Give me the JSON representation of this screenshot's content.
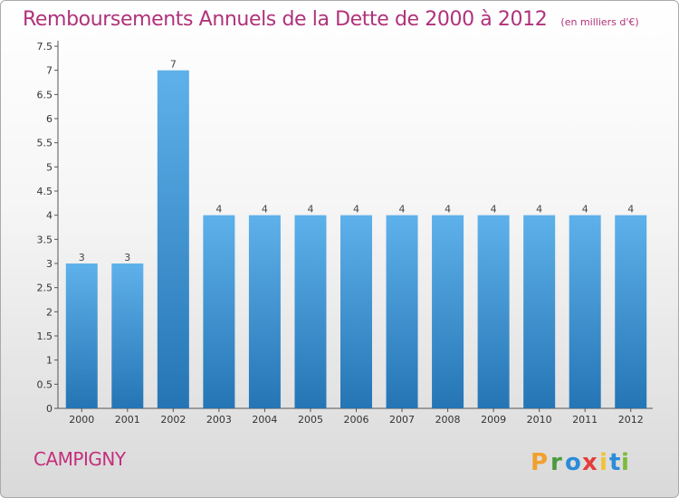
{
  "chart_data": {
    "type": "bar",
    "title": "Remboursements Annuels de la Dette de 2000 à 2012",
    "unit": "(en milliers d'€)",
    "categories": [
      "2000",
      "2001",
      "2002",
      "2003",
      "2004",
      "2005",
      "2006",
      "2007",
      "2008",
      "2009",
      "2010",
      "2011",
      "2012"
    ],
    "values": [
      3,
      3,
      7,
      4,
      4,
      4,
      4,
      4,
      4,
      4,
      4,
      4,
      4
    ],
    "data_labels": [
      "3",
      "3",
      "7",
      "4",
      "4",
      "4",
      "4",
      "4",
      "4",
      "4",
      "4",
      "4",
      "4"
    ],
    "yticks": [
      "0",
      "0.5",
      "1",
      "1.5",
      "2",
      "2.5",
      "3",
      "3.5",
      "4",
      "4.5",
      "5",
      "5.5",
      "6",
      "6.5",
      "7",
      "7.5"
    ],
    "ylim": [
      0,
      7.5
    ],
    "xlabel": "",
    "ylabel": "",
    "grid": false,
    "bar_color_top": "#5eb1ea",
    "bar_color_bottom": "#2575b5"
  },
  "footer": {
    "commune": "CAMPIGNY"
  },
  "logo": {
    "text": "Proxiti",
    "letters": [
      "P",
      "r",
      "o",
      "x",
      "i",
      "t",
      "i"
    ],
    "colors": [
      "#f2a02d",
      "#4b9b3b",
      "#2b8cd8",
      "#e33e3b",
      "#f2c233",
      "#2b8cd8",
      "#7cbb3c"
    ]
  }
}
